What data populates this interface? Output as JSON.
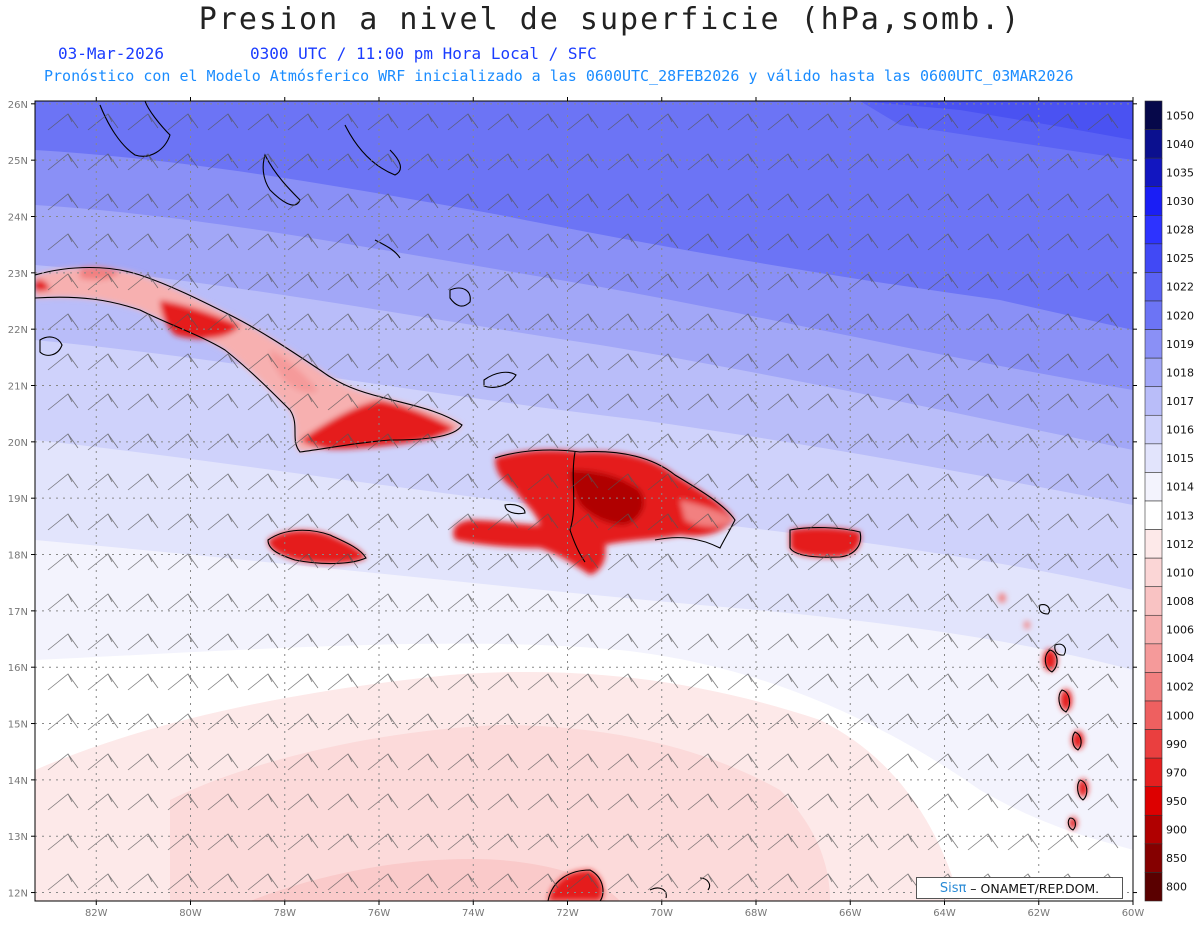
{
  "title": "Presion a nivel de superficie (hPa,somb.)",
  "header": {
    "date": "03-Mar-2026",
    "time": "0300 UTC / 11:00 pm Hora Local / SFC",
    "forecast": "Pronóstico con el Modelo Atmósferico WRF inicializado a las 0600UTC_28FEB2026 y válido hasta las  0600UTC_03MAR2026"
  },
  "axes": {
    "lat_labels": [
      "26N",
      "25N",
      "24N",
      "23N",
      "22N",
      "21N",
      "20N",
      "19N",
      "18N",
      "17N",
      "16N",
      "15N",
      "14N",
      "13N",
      "12N"
    ],
    "lon_labels": [
      "82W",
      "80W",
      "78W",
      "76W",
      "74W",
      "72W",
      "70W",
      "68W",
      "66W",
      "64W",
      "62W",
      "60W"
    ]
  },
  "legend": {
    "levels": [
      "1050",
      "1040",
      "1035",
      "1030",
      "1028",
      "1025",
      "1022",
      "1020",
      "1019",
      "1018",
      "1017",
      "1016",
      "1015",
      "1014",
      "1013",
      "1012",
      "1010",
      "1008",
      "1006",
      "1004",
      "1002",
      "1000",
      "990",
      "970",
      "950",
      "900",
      "850",
      "800"
    ],
    "colors": [
      "#06084a",
      "#0b108f",
      "#1216c0",
      "#1a1ef5",
      "#2d33ff",
      "#4149f5",
      "#5a62f4",
      "#6c74f5",
      "#8a90f6",
      "#a2a7f7",
      "#b9bdf9",
      "#cfd2fb",
      "#e2e4fc",
      "#f3f3fd",
      "#ffffff",
      "#fde9e9",
      "#fbd6d6",
      "#f9c3c3",
      "#f7b0b0",
      "#f59a9a",
      "#f28080",
      "#ee6060",
      "#ea3f3f",
      "#e51f1f",
      "#dd0000",
      "#b00000",
      "#850000",
      "#5a0000"
    ]
  },
  "credit": {
    "brand": "Sisπ",
    "org": "– ONAMET/REP.DOM."
  }
}
